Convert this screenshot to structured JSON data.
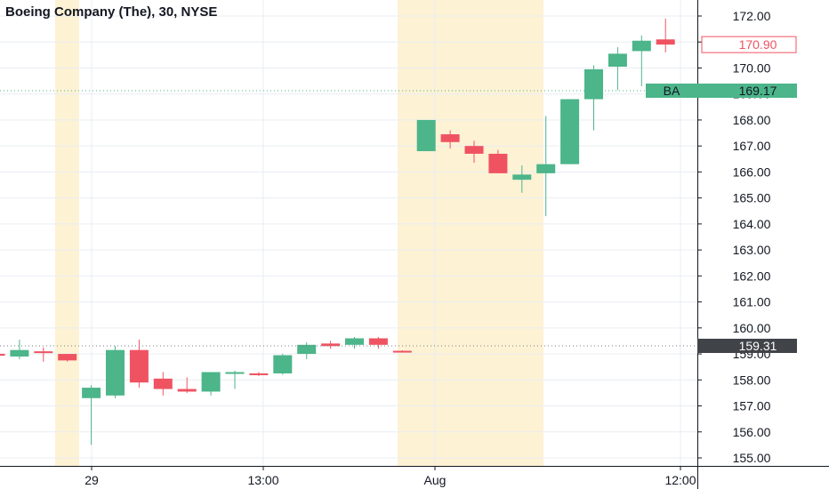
{
  "chart_title": "Boeing Company (The), 30, NYSE",
  "colors": {
    "up": "#4cb58a",
    "down": "#ef5362",
    "session_shade": "#fdf2d4",
    "grid": "#e9edf2",
    "price_tag_green": "#4cb58a",
    "price_tag_dark": "#404348",
    "price_tag_red_border": "#ef5362"
  },
  "chart_data": {
    "type": "candlestick",
    "symbol": "BA",
    "interval": "30",
    "exchange": "NYSE",
    "title": "Boeing Company (The), 30, NYSE",
    "y_ticks": [
      "172.00",
      "171.00",
      "170.00",
      "169.00",
      "168.00",
      "167.00",
      "166.00",
      "165.00",
      "164.00",
      "163.00",
      "162.00",
      "161.00",
      "160.00",
      "159.00",
      "158.00",
      "157.00",
      "156.00",
      "155.00"
    ],
    "ylim": [
      154.8,
      172.4
    ],
    "x_labels": [
      "29",
      "13:00",
      "Aug",
      "12:00"
    ],
    "grid": true,
    "candles": [
      {
        "o": 159.0,
        "h": 159.1,
        "l": 158.9,
        "c": 158.95
      },
      {
        "o": 158.9,
        "h": 159.55,
        "l": 158.8,
        "c": 159.15
      },
      {
        "o": 159.1,
        "h": 159.25,
        "l": 158.7,
        "c": 159.05
      },
      {
        "o": 159.0,
        "h": 159.0,
        "l": 158.7,
        "c": 158.75
      },
      {
        "o": 157.3,
        "h": 157.8,
        "l": 155.5,
        "c": 157.7
      },
      {
        "o": 157.4,
        "h": 159.3,
        "l": 157.3,
        "c": 159.15
      },
      {
        "o": 159.15,
        "h": 159.55,
        "l": 157.7,
        "c": 157.9
      },
      {
        "o": 158.05,
        "h": 158.3,
        "l": 157.4,
        "c": 157.65
      },
      {
        "o": 157.65,
        "h": 158.1,
        "l": 157.5,
        "c": 157.55
      },
      {
        "o": 157.55,
        "h": 158.3,
        "l": 157.4,
        "c": 158.3
      },
      {
        "o": 158.25,
        "h": 158.35,
        "l": 157.65,
        "c": 158.3
      },
      {
        "o": 158.25,
        "h": 158.3,
        "l": 158.15,
        "c": 158.2
      },
      {
        "o": 158.25,
        "h": 159.0,
        "l": 158.2,
        "c": 158.95
      },
      {
        "o": 159.0,
        "h": 159.45,
        "l": 158.8,
        "c": 159.35
      },
      {
        "o": 159.4,
        "h": 159.5,
        "l": 159.2,
        "c": 159.3
      },
      {
        "o": 159.35,
        "h": 159.65,
        "l": 159.2,
        "c": 159.6
      },
      {
        "o": 159.6,
        "h": 159.65,
        "l": 159.2,
        "c": 159.35
      },
      {
        "o": 159.12,
        "h": 159.14,
        "l": 159.08,
        "c": 159.1
      },
      {
        "o": 166.8,
        "h": 168.0,
        "l": 166.8,
        "c": 168.0
      },
      {
        "o": 167.45,
        "h": 167.6,
        "l": 166.9,
        "c": 167.15
      },
      {
        "o": 167.0,
        "h": 167.2,
        "l": 166.35,
        "c": 166.7
      },
      {
        "o": 166.7,
        "h": 166.85,
        "l": 165.95,
        "c": 165.95
      },
      {
        "o": 165.7,
        "h": 166.25,
        "l": 165.2,
        "c": 165.9
      },
      {
        "o": 165.95,
        "h": 168.15,
        "l": 164.3,
        "c": 166.3
      },
      {
        "o": 166.3,
        "h": 168.8,
        "l": 166.3,
        "c": 168.8
      },
      {
        "o": 168.8,
        "h": 170.1,
        "l": 167.6,
        "c": 169.95
      },
      {
        "o": 170.05,
        "h": 170.8,
        "l": 169.15,
        "c": 170.55
      },
      {
        "o": 170.65,
        "h": 171.25,
        "l": 169.3,
        "c": 171.05
      },
      {
        "o": 171.1,
        "h": 171.9,
        "l": 170.6,
        "c": 170.9
      }
    ],
    "last_price": "170.90",
    "last_price_label": "BA",
    "last_price_value": "169.17",
    "prev_close": "159.31"
  },
  "price_tags": {
    "symbol": "BA",
    "current": "169.17",
    "last": "170.90",
    "reference": "159.31"
  }
}
